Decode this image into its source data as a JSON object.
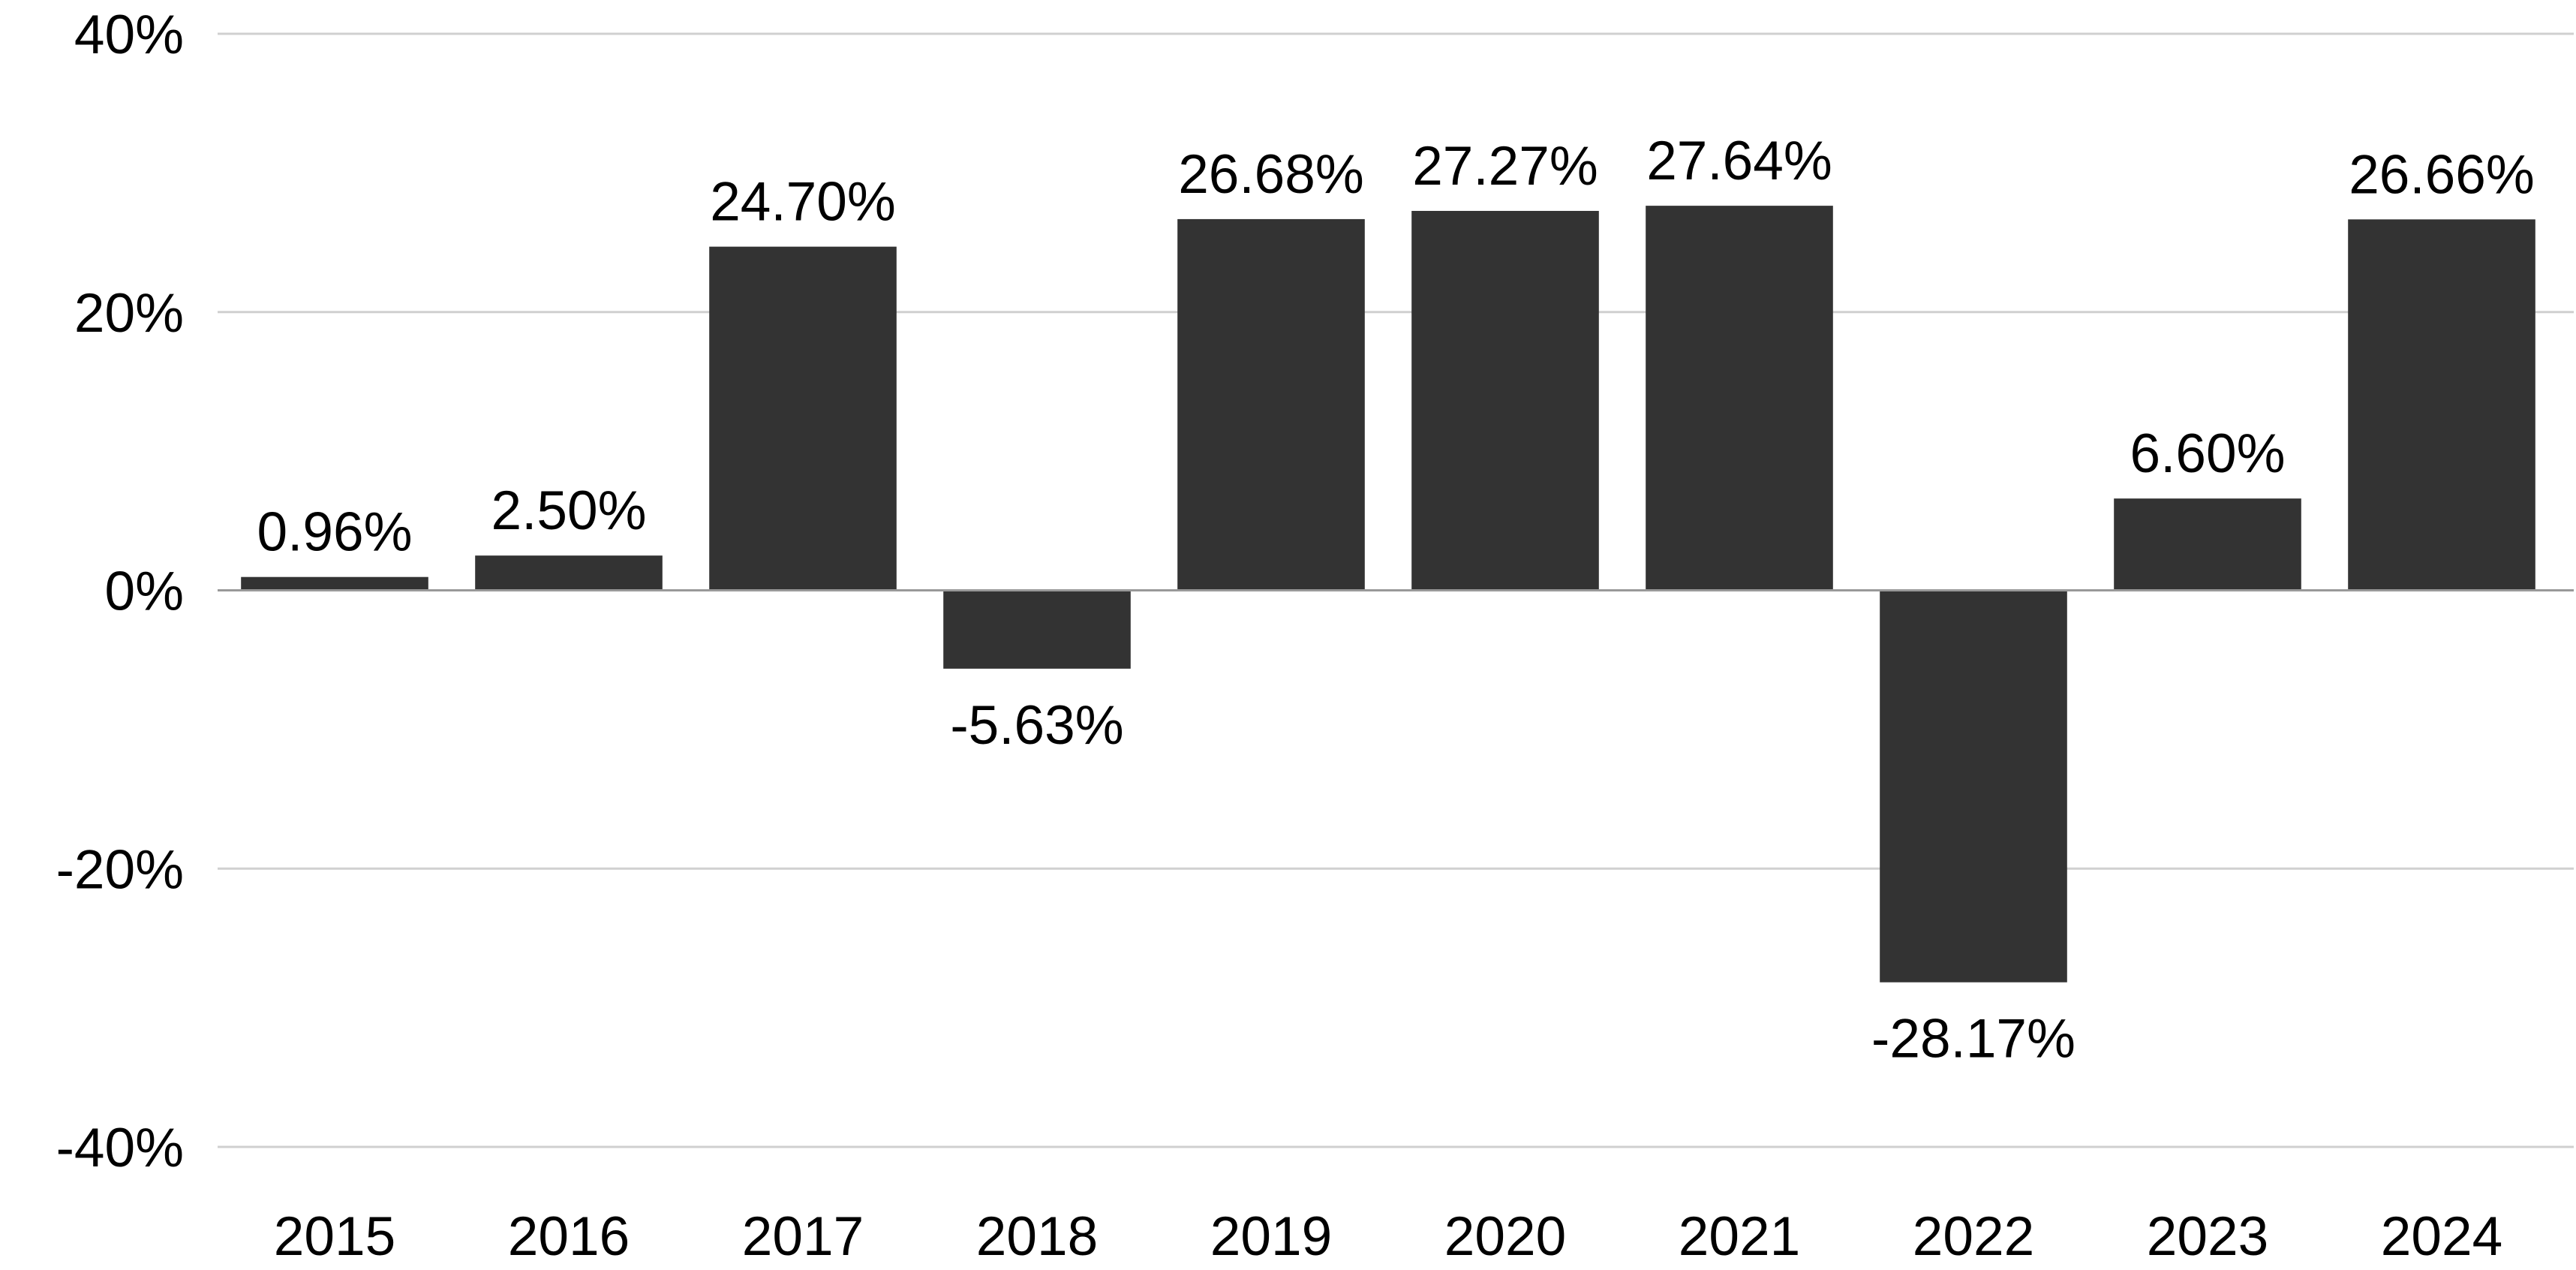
{
  "chart_data": {
    "type": "bar",
    "categories": [
      "2015",
      "2016",
      "2017",
      "2018",
      "2019",
      "2020",
      "2021",
      "2022",
      "2023",
      "2024"
    ],
    "values": [
      0.96,
      2.5,
      24.7,
      -5.63,
      26.68,
      27.27,
      27.64,
      -28.17,
      6.6,
      26.66
    ],
    "data_labels": [
      "0.96%",
      "2.50%",
      "24.70%",
      "-5.63%",
      "26.68%",
      "27.27%",
      "27.64%",
      "-28.17%",
      "6.60%",
      "26.66%"
    ],
    "y_ticks": [
      40,
      20,
      0,
      -20,
      -40
    ],
    "y_tick_labels": [
      "40%",
      "20%",
      "0%",
      "-20%",
      "-40%"
    ],
    "title": "",
    "xlabel": "",
    "ylabel": "",
    "ylim": [
      -40,
      40
    ],
    "grid": true,
    "legend": "none",
    "colors": {
      "bar": "#333333",
      "grid": "#d0d0d0",
      "zero_line": "#999999",
      "text": "#000000"
    }
  }
}
